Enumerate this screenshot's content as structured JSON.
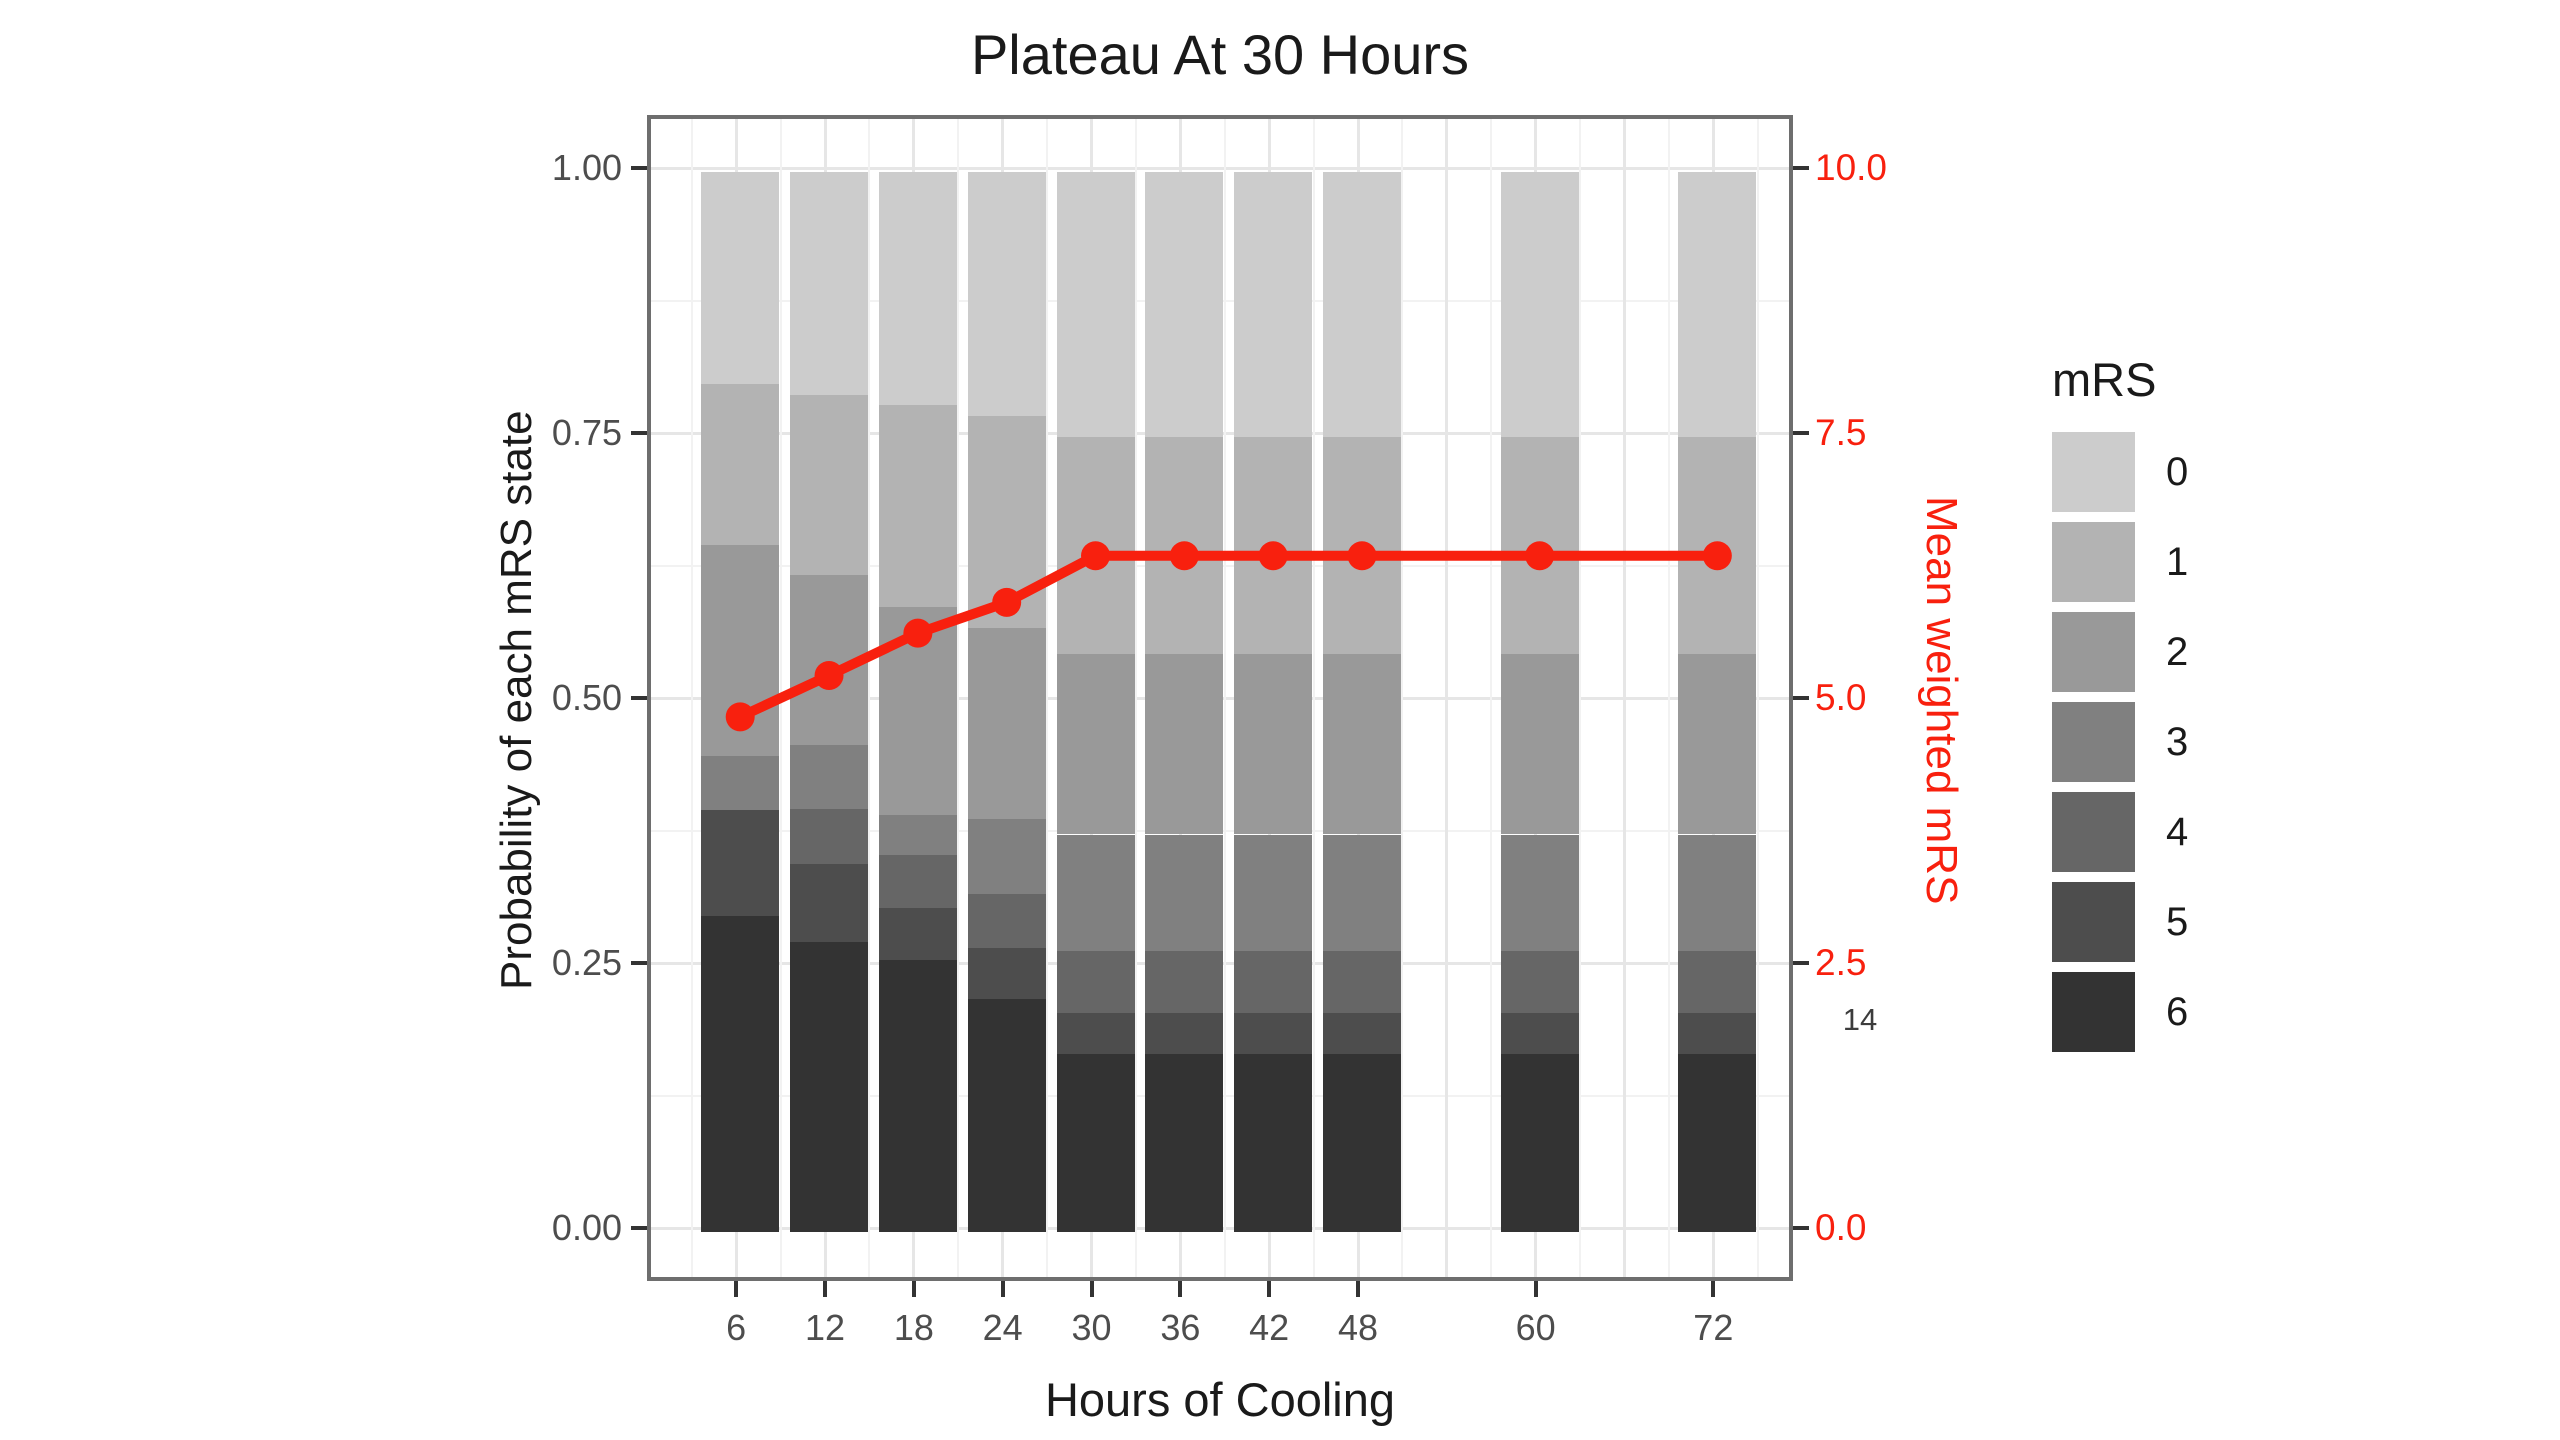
{
  "title": "Plateau At 30 Hours",
  "note": "14",
  "axes": {
    "left_label": "Probability of each mRS state",
    "bottom_label": "Hours of Cooling",
    "right_label": "Mean weighted mRS",
    "left_tick_labels": [
      "1.00",
      "0.75",
      "0.50",
      "0.25",
      "0.00"
    ],
    "left_tick_values": [
      1.0,
      0.75,
      0.5,
      0.25,
      0.0
    ],
    "right_tick_labels": [
      "10.0",
      "7.5",
      "5.0",
      "2.5",
      "0.0"
    ],
    "right_tick_values": [
      10,
      7.5,
      5,
      2.5,
      0
    ],
    "x_tick_labels": [
      "6",
      "12",
      "18",
      "24",
      "30",
      "36",
      "42",
      "48",
      "60",
      "72"
    ]
  },
  "legend": {
    "title": "mRS",
    "items": [
      {
        "label": "0",
        "color": "#CCCCCC"
      },
      {
        "label": "1",
        "color": "#B3B3B3"
      },
      {
        "label": "2",
        "color": "#999999"
      },
      {
        "label": "3",
        "color": "#808080"
      },
      {
        "label": "4",
        "color": "#666666"
      },
      {
        "label": "5",
        "color": "#4D4D4D"
      },
      {
        "label": "6",
        "color": "#333333"
      }
    ]
  },
  "colors": {
    "accent_red": "#F8200E",
    "tick_label_gray": "#4D4D4D",
    "text_dark": "#1A1A1A",
    "panel_border": "#6E6E6E",
    "grid_major": "#E6E6E6",
    "grid_minor": "#F2F2F2",
    "background": "#FFFFFF"
  },
  "chart_data": {
    "type": "stacked_bar_with_line",
    "title": "Plateau At 30 Hours",
    "xlabel": "Hours of Cooling",
    "ylabel_left": "Probability of each mRS state",
    "ylabel_right": "Mean weighted mRS",
    "x": [
      6,
      12,
      18,
      24,
      30,
      36,
      42,
      48,
      60,
      72
    ],
    "x_slot_min": 6,
    "x_slot_step": 6,
    "x_slot_max": 72,
    "ylim_left": [
      0,
      1
    ],
    "ylim_right": [
      0,
      10
    ],
    "grid": true,
    "legend_position": "right",
    "bar_stack_note": "mRS 6 at bottom, mRS 0 on top; probabilities per bar sum to 1",
    "series": [
      {
        "name": "0",
        "values": [
          0.2,
          0.21,
          0.22,
          0.23,
          0.25,
          0.25,
          0.25,
          0.25,
          0.25,
          0.25
        ]
      },
      {
        "name": "1",
        "values": [
          0.152,
          0.17,
          0.19,
          0.2,
          0.205,
          0.205,
          0.205,
          0.205,
          0.205,
          0.205
        ]
      },
      {
        "name": "2",
        "values": [
          0.199,
          0.161,
          0.197,
          0.18,
          0.17,
          0.17,
          0.17,
          0.17,
          0.17,
          0.17
        ]
      },
      {
        "name": "3",
        "values": [
          0.051,
          0.06,
          0.037,
          0.071,
          0.11,
          0.11,
          0.11,
          0.11,
          0.11,
          0.11
        ]
      },
      {
        "name": "4",
        "values": [
          0.0,
          0.052,
          0.05,
          0.051,
          0.058,
          0.058,
          0.058,
          0.058,
          0.058,
          0.058
        ]
      },
      {
        "name": "5",
        "values": [
          0.1,
          0.073,
          0.049,
          0.048,
          0.039,
          0.039,
          0.039,
          0.039,
          0.039,
          0.039
        ]
      },
      {
        "name": "6",
        "values": [
          0.298,
          0.274,
          0.257,
          0.22,
          0.168,
          0.168,
          0.168,
          0.168,
          0.168,
          0.168
        ]
      }
    ],
    "line_series": {
      "name": "Mean weighted mRS",
      "values": [
        4.86,
        5.25,
        5.65,
        5.94,
        6.38,
        6.38,
        6.38,
        6.38,
        6.38,
        6.38
      ]
    }
  }
}
